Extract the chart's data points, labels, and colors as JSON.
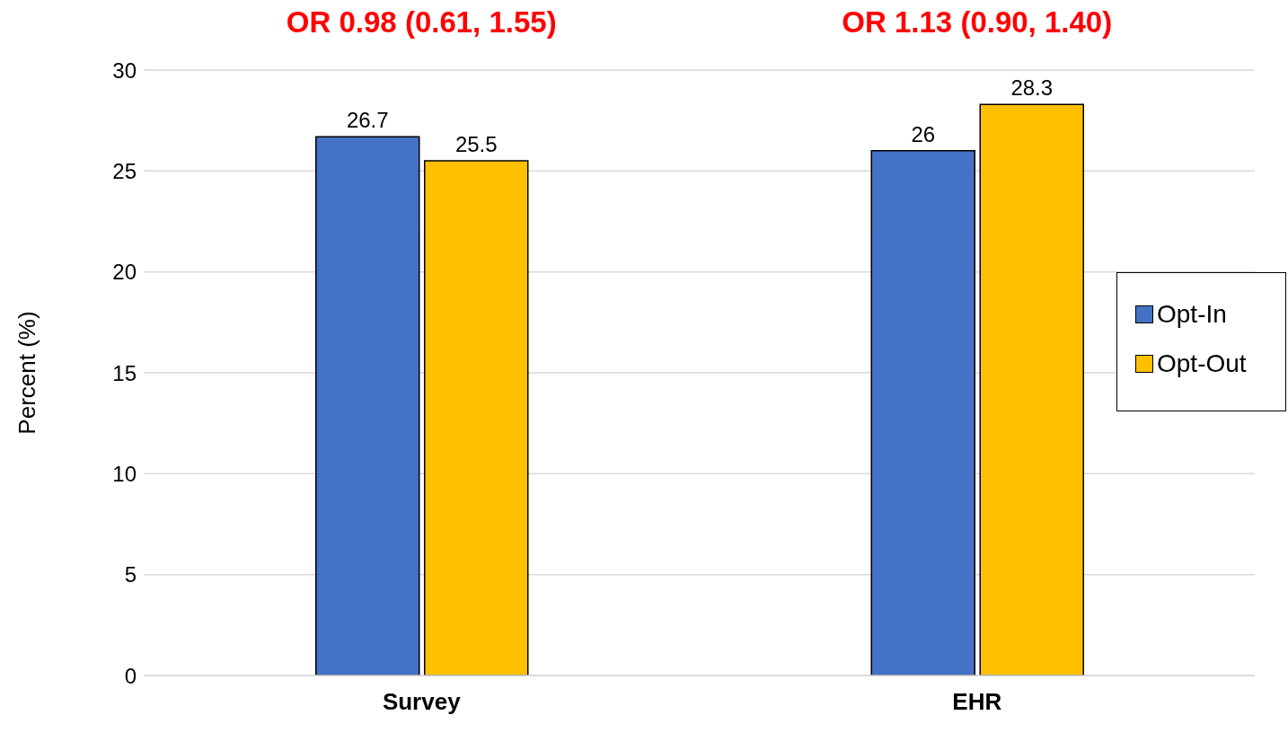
{
  "chart_data": {
    "type": "bar",
    "categories": [
      "Survey",
      "EHR"
    ],
    "series": [
      {
        "name": "Opt-In",
        "color": "#4472c4",
        "values": [
          26.7,
          26
        ]
      },
      {
        "name": "Opt-Out",
        "color": "#ffc000",
        "values": [
          25.5,
          28.3
        ]
      }
    ],
    "ylabel": "Percent (%)",
    "ylim": [
      0,
      30
    ],
    "yticks": [
      0,
      5,
      10,
      15,
      20,
      25,
      30
    ],
    "grid": "y",
    "legend": "right",
    "data_labels": true,
    "annotations": [
      "OR 0.98 (0.61, 1.55)",
      "OR 1.13 (0.90, 1.40)"
    ]
  }
}
